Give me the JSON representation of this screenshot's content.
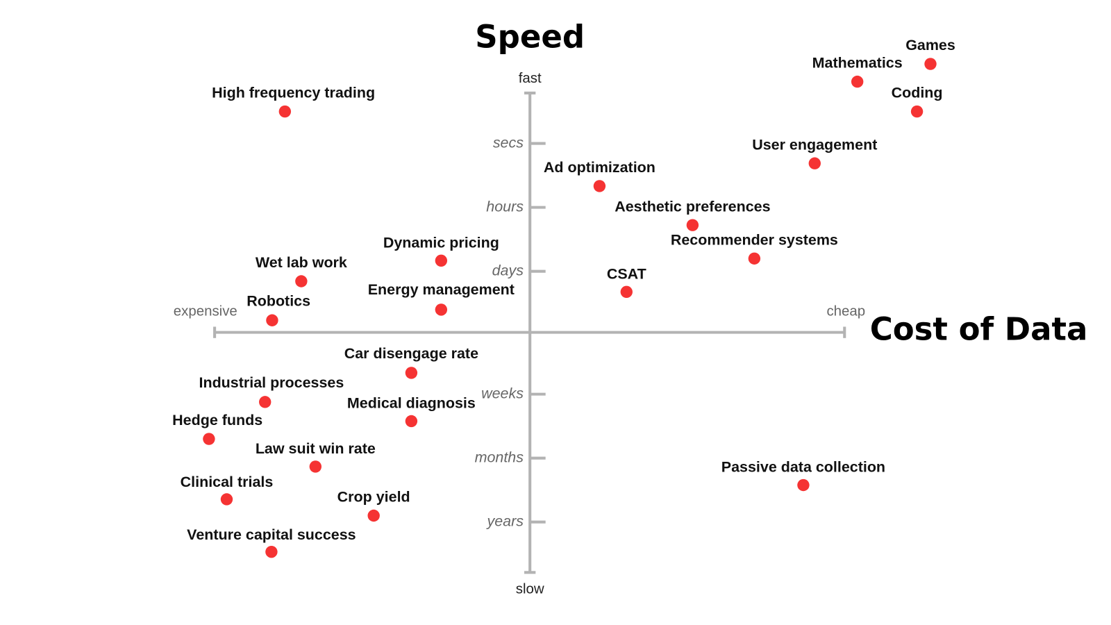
{
  "title_y": "Speed",
  "title_x": "Cost of Data",
  "y_axis": {
    "top": "fast",
    "bottom": "slow",
    "ticks": [
      "secs",
      "hours",
      "days",
      "weeks",
      "months",
      "years"
    ]
  },
  "x_axis": {
    "left": "expensive",
    "right": "cheap"
  },
  "points": [
    {
      "label": "Games"
    },
    {
      "label": "Mathematics"
    },
    {
      "label": "Coding"
    },
    {
      "label": "High frequency trading"
    },
    {
      "label": "User engagement"
    },
    {
      "label": "Ad optimization"
    },
    {
      "label": "Aesthetic preferences"
    },
    {
      "label": "Recommender systems"
    },
    {
      "label": "Dynamic pricing"
    },
    {
      "label": "Wet lab work"
    },
    {
      "label": "CSAT"
    },
    {
      "label": "Energy management"
    },
    {
      "label": "Robotics"
    },
    {
      "label": "Car disengage rate"
    },
    {
      "label": "Industrial processes"
    },
    {
      "label": "Medical diagnosis"
    },
    {
      "label": "Hedge funds"
    },
    {
      "label": "Law suit win rate"
    },
    {
      "label": "Clinical trials"
    },
    {
      "label": "Crop yield"
    },
    {
      "label": "Venture capital success"
    },
    {
      "label": "Passive data collection"
    }
  ]
}
